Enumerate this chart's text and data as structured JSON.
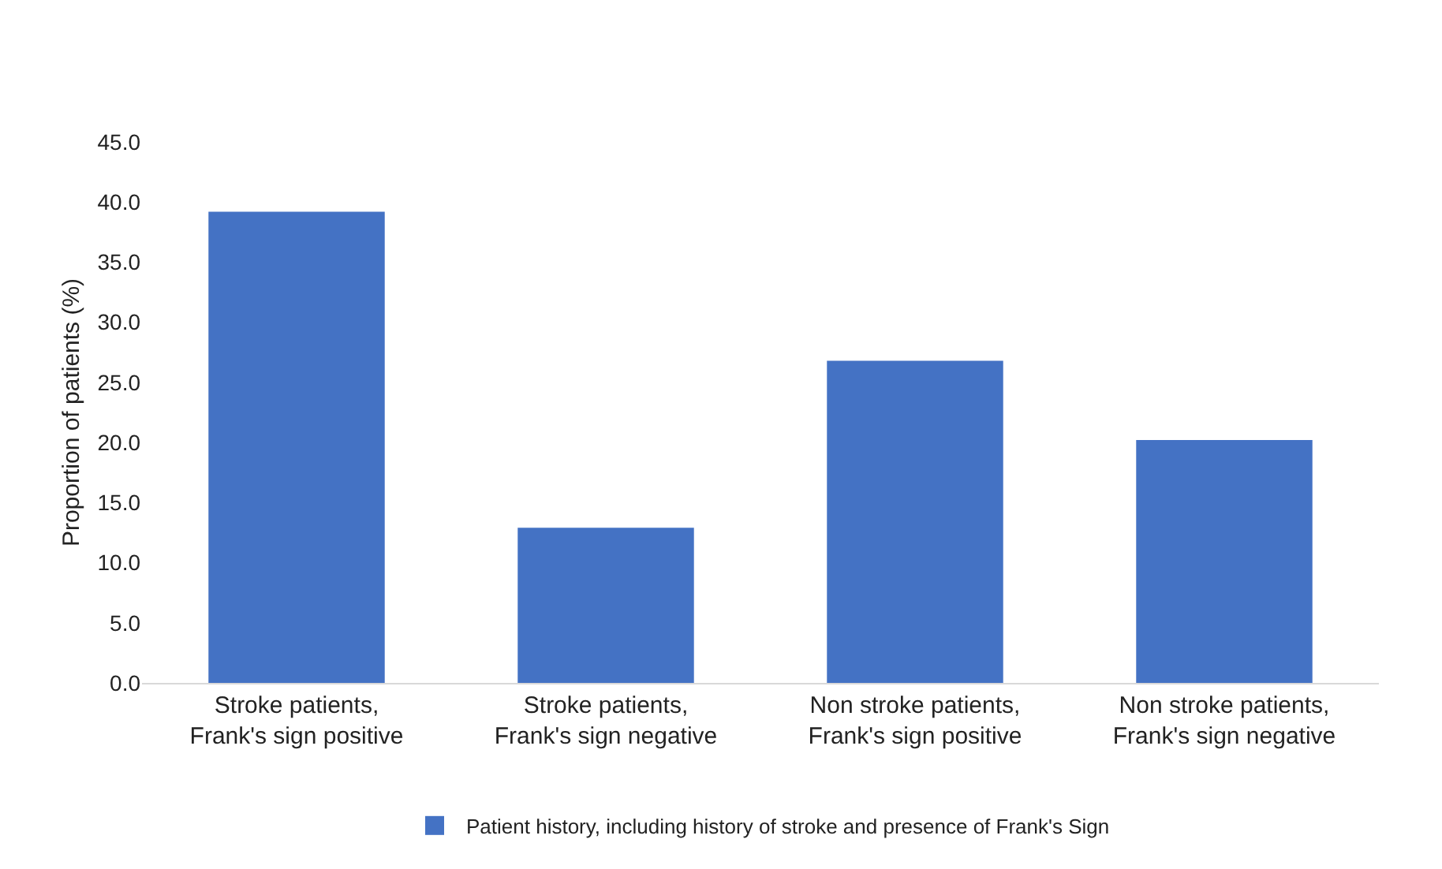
{
  "chart_data": {
    "type": "bar",
    "ylabel": "Proportion of patients (%)",
    "categories": [
      "Stroke patients, Frank's sign positive",
      "Stroke patients, Frank's sign negative",
      "Non stroke patients, Frank's sign positive",
      "Non stroke patients, Frank's sign negative"
    ],
    "series": [
      {
        "name": "Patient history, including history of stroke and presence of Frank's Sign",
        "color": "#4472c4",
        "values": [
          39.2,
          12.9,
          26.8,
          20.2
        ]
      }
    ],
    "ylim": [
      0,
      45
    ],
    "yticks": [
      {
        "value": 0,
        "label": "0.0"
      },
      {
        "value": 5,
        "label": "5.0"
      },
      {
        "value": 10,
        "label": "10.0"
      },
      {
        "value": 15,
        "label": "15.0"
      },
      {
        "value": 20,
        "label": "20.0"
      },
      {
        "value": 25,
        "label": "25.0"
      },
      {
        "value": 30,
        "label": "30.0"
      },
      {
        "value": 35,
        "label": "35.0"
      },
      {
        "value": 40,
        "label": "40.0"
      },
      {
        "value": 45,
        "label": "45.0"
      }
    ],
    "grid": false,
    "legend": "bottom"
  }
}
